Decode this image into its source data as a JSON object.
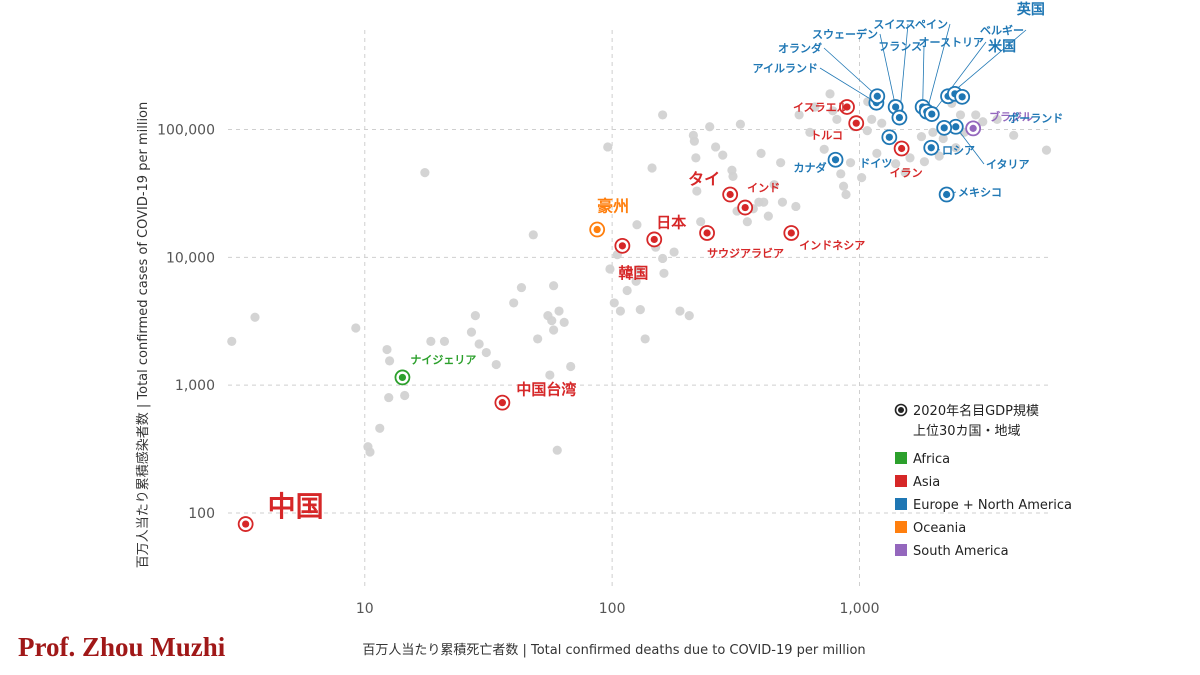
{
  "credit": "Prof. Zhou Muzhi",
  "chart_data": {
    "type": "scatter",
    "xscale": "log",
    "yscale": "log",
    "xlim": [
      2.8,
      6000
    ],
    "ylim": [
      25,
      600000
    ],
    "xticks": [
      10,
      100,
      1000
    ],
    "xtick_labels": [
      "10",
      "100",
      "1,000"
    ],
    "yticks": [
      100,
      1000,
      10000,
      100000
    ],
    "ytick_labels": [
      "100",
      "1,000",
      "10,000",
      "100,000"
    ],
    "xlabel": "百万人当たり累積死亡者数 | Total confirmed deaths due to COVID-19 per million",
    "ylabel": "百万人当たり累積感染者数 | Total confirmed cases of COVID-19 per million",
    "grid": true,
    "legend": {
      "placement": "bottom-right",
      "marker_note_line1": "2020年名目GDP規模",
      "marker_note_line2": "上位30カ国・地域",
      "entries": [
        {
          "name": "Africa",
          "color": "#2ca02c"
        },
        {
          "name": "Asia",
          "color": "#d62728"
        },
        {
          "name": "Europe + North America",
          "color": "#1f77b4"
        },
        {
          "name": "Oceania",
          "color": "#ff7f0e"
        },
        {
          "name": "South America",
          "color": "#9467bd"
        }
      ]
    },
    "highlighted": [
      {
        "name": "中国",
        "x": 3.3,
        "y": 82,
        "region": "Asia"
      },
      {
        "name": "ナイジェリア",
        "x": 14.2,
        "y": 1150,
        "region": "Africa"
      },
      {
        "name": "中国台湾",
        "x": 36,
        "y": 730,
        "region": "Asia"
      },
      {
        "name": "豪州",
        "x": 87,
        "y": 16500,
        "region": "Oceania"
      },
      {
        "name": "韓国",
        "x": 110,
        "y": 12300,
        "region": "Asia"
      },
      {
        "name": "日本",
        "x": 148,
        "y": 13800,
        "region": "Asia"
      },
      {
        "name": "サウジアラビア",
        "x": 242,
        "y": 15500,
        "region": "Asia"
      },
      {
        "name": "タイ",
        "x": 300,
        "y": 31000,
        "region": "Asia"
      },
      {
        "name": "インド",
        "x": 345,
        "y": 24500,
        "region": "Asia"
      },
      {
        "name": "インドネシア",
        "x": 530,
        "y": 15500,
        "region": "Asia"
      },
      {
        "name": "カナダ",
        "x": 800,
        "y": 58000,
        "region": "Europe + North America"
      },
      {
        "name": "イスラエル",
        "x": 890,
        "y": 150000,
        "region": "Asia"
      },
      {
        "name": "トルコ",
        "x": 970,
        "y": 112000,
        "region": "Asia"
      },
      {
        "name": "ドイツ",
        "x": 1320,
        "y": 87000,
        "region": "Europe + North America"
      },
      {
        "name": "イラン",
        "x": 1480,
        "y": 71000,
        "region": "Asia"
      },
      {
        "name": "アイルランド",
        "x": 1170,
        "y": 162000,
        "region": "Europe + North America"
      },
      {
        "name": "オランダ",
        "x": 1180,
        "y": 182000,
        "region": "Europe + North America"
      },
      {
        "name": "スウェーデン",
        "x": 1400,
        "y": 150000,
        "region": "Europe + North America"
      },
      {
        "name": "スイス",
        "x": 1450,
        "y": 124000,
        "region": "Europe + North America"
      },
      {
        "name": "フランス",
        "x": 1800,
        "y": 150000,
        "region": "Europe + North America"
      },
      {
        "name": "スペイン",
        "x": 1870,
        "y": 138000,
        "region": "Europe + North America"
      },
      {
        "name": "オーストリア",
        "x": 1960,
        "y": 132000,
        "region": "Europe + North America"
      },
      {
        "name": "ロシア",
        "x": 1950,
        "y": 72000,
        "region": "Europe + North America"
      },
      {
        "name": "メキシコ",
        "x": 2250,
        "y": 31000,
        "region": "Europe + North America"
      },
      {
        "name": "ベルギー",
        "x": 2280,
        "y": 182000,
        "region": "Europe + North America"
      },
      {
        "name": "英国",
        "x": 2430,
        "y": 190000,
        "region": "Europe + North America"
      },
      {
        "name": "米国",
        "x": 2600,
        "y": 180000,
        "region": "Europe + North America"
      },
      {
        "name": "イタリア",
        "x": 2450,
        "y": 105000,
        "region": "Europe + North America"
      },
      {
        "name": "ポーランド",
        "x": 2200,
        "y": 103000,
        "region": "Europe + North America"
      },
      {
        "name": "ブラジル",
        "x": 2880,
        "y": 102000,
        "region": "South America"
      }
    ],
    "others": [
      [
        2.9,
        2200
      ],
      [
        3.6,
        3400
      ],
      [
        9.2,
        2800
      ],
      [
        10.3,
        330
      ],
      [
        11.5,
        460
      ],
      [
        10.5,
        300
      ],
      [
        12.3,
        1900
      ],
      [
        12.6,
        1550
      ],
      [
        12.5,
        800
      ],
      [
        14.5,
        830
      ],
      [
        17.5,
        46000
      ],
      [
        18.5,
        2200
      ],
      [
        21,
        2200
      ],
      [
        27,
        2600
      ],
      [
        28,
        3500
      ],
      [
        29,
        2100
      ],
      [
        31,
        1800
      ],
      [
        34,
        1450
      ],
      [
        40,
        4400
      ],
      [
        43,
        5800
      ],
      [
        48,
        15000
      ],
      [
        50,
        2300
      ],
      [
        55,
        3500
      ],
      [
        57,
        3200
      ],
      [
        58,
        2700
      ],
      [
        58,
        6000
      ],
      [
        61,
        3800
      ],
      [
        64,
        3100
      ],
      [
        56,
        1200
      ],
      [
        60,
        310
      ],
      [
        68,
        1400
      ],
      [
        96,
        73000
      ],
      [
        98,
        8100
      ],
      [
        102,
        4400
      ],
      [
        105,
        10500
      ],
      [
        108,
        3800
      ],
      [
        115,
        5500
      ],
      [
        125,
        6500
      ],
      [
        126,
        18000
      ],
      [
        128,
        8000
      ],
      [
        136,
        2300
      ],
      [
        130,
        3900
      ],
      [
        145,
        50000
      ],
      [
        150,
        12000
      ],
      [
        160,
        130000
      ],
      [
        160,
        9800
      ],
      [
        162,
        7500
      ],
      [
        178,
        11000
      ],
      [
        188,
        3800
      ],
      [
        205,
        3500
      ],
      [
        215,
        81000
      ],
      [
        213,
        90000
      ],
      [
        218,
        60000
      ],
      [
        220,
        33000
      ],
      [
        228,
        19000
      ],
      [
        248,
        105000
      ],
      [
        262,
        73000
      ],
      [
        280,
        63000
      ],
      [
        305,
        48000
      ],
      [
        308,
        43000
      ],
      [
        320,
        23000
      ],
      [
        330,
        110000
      ],
      [
        352,
        19000
      ],
      [
        372,
        24000
      ],
      [
        392,
        27000
      ],
      [
        400,
        65000
      ],
      [
        410,
        27000
      ],
      [
        428,
        21000
      ],
      [
        452,
        37000
      ],
      [
        480,
        55000
      ],
      [
        488,
        27000
      ],
      [
        553,
        25000
      ],
      [
        570,
        130000
      ],
      [
        630,
        95000
      ],
      [
        660,
        150000
      ],
      [
        720,
        70000
      ],
      [
        760,
        190000
      ],
      [
        780,
        140000
      ],
      [
        810,
        120000
      ],
      [
        840,
        45000
      ],
      [
        862,
        36000
      ],
      [
        882,
        31000
      ],
      [
        920,
        55000
      ],
      [
        950,
        105000
      ],
      [
        1020,
        42000
      ],
      [
        1075,
        98000
      ],
      [
        1080,
        165000
      ],
      [
        1120,
        120000
      ],
      [
        1175,
        65000
      ],
      [
        1230,
        112000
      ],
      [
        1380,
        160000
      ],
      [
        1400,
        54000
      ],
      [
        1480,
        118000
      ],
      [
        1530,
        46000
      ],
      [
        1600,
        60000
      ],
      [
        1780,
        88000
      ],
      [
        1830,
        56000
      ],
      [
        1980,
        95000
      ],
      [
        2100,
        62000
      ],
      [
        2180,
        85000
      ],
      [
        2360,
        160000
      ],
      [
        2450,
        72000
      ],
      [
        2560,
        130000
      ],
      [
        2650,
        95000
      ],
      [
        2950,
        130000
      ],
      [
        3150,
        115000
      ],
      [
        3600,
        120000
      ],
      [
        4200,
        90000
      ],
      [
        5700,
        69000
      ]
    ]
  }
}
